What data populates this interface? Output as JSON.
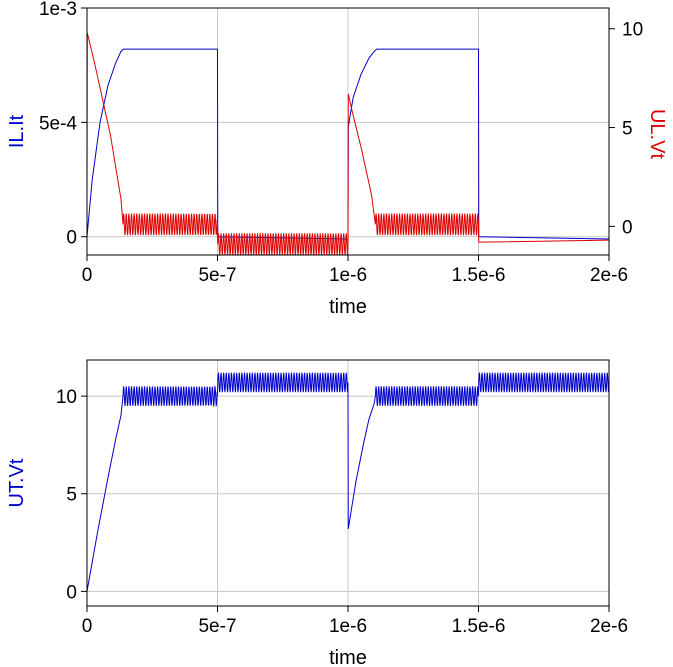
{
  "chart_data": [
    {
      "type": "line",
      "xlabel": "time",
      "x_ticks": [
        "0",
        "5e-7",
        "1e-6",
        "1.5e-6",
        "2e-6"
      ],
      "xlim": [
        0,
        2e-06
      ],
      "grid": true,
      "left_axis": {
        "label": "IL.It",
        "color": "#0000cc",
        "ylim": [
          -8e-05,
          0.001
        ],
        "ticks": [
          {
            "value": 0,
            "label": "0"
          },
          {
            "value": 0.0005,
            "label": "5e-4"
          },
          {
            "value": 0.001,
            "label": "1e-3"
          }
        ]
      },
      "right_axis": {
        "label": "UL.Vt",
        "color": "#dd0000",
        "ylim": [
          -1.45,
          11.05
        ],
        "ticks": [
          {
            "value": 0,
            "label": "0"
          },
          {
            "value": 5,
            "label": "5"
          },
          {
            "value": 10,
            "label": "10"
          }
        ]
      },
      "series": [
        {
          "name": "IL.It",
          "axis": "left",
          "color": "#0000cc",
          "points": [
            [
              0,
              0
            ],
            [
              2e-08,
              0.00025
            ],
            [
              5e-08,
              0.0005
            ],
            [
              8e-08,
              0.00066
            ],
            [
              1.1e-07,
              0.00076
            ],
            [
              1.3e-07,
              0.00081
            ],
            [
              1.4e-07,
              0.00082
            ],
            [
              5e-07,
              0.00082
            ],
            [
              5.01e-07,
              0
            ],
            [
              1e-06,
              -1e-05
            ],
            [
              1.001e-06,
              0.00048
            ],
            [
              1.02e-06,
              0.00061
            ],
            [
              1.05e-06,
              0.00071
            ],
            [
              1.08e-06,
              0.00078
            ],
            [
              1.1e-06,
              0.00081
            ],
            [
              1.11e-06,
              0.00082
            ],
            [
              1.5e-06,
              0.00082
            ],
            [
              1.501e-06,
              0
            ],
            [
              2e-06,
              -1e-05
            ]
          ]
        },
        {
          "name": "UL.Vt",
          "axis": "right",
          "color": "#dd0000",
          "oscillation": {
            "amplitude": 0.55,
            "period": 1e-08
          },
          "points": [
            [
              0,
              1.5
            ],
            [
              1e-09,
              9.8
            ],
            [
              3e-08,
              8.2
            ],
            [
              6e-08,
              6.4
            ],
            [
              9e-08,
              4.6
            ],
            [
              1.15e-07,
              2.6
            ],
            [
              1.3e-07,
              1.4
            ],
            [
              1.38e-07,
              0.1
            ],
            [
              5e-07,
              0.1
            ],
            [
              5.01e-07,
              -0.9
            ],
            [
              1e-06,
              -0.9
            ],
            [
              1.001e-06,
              6.7
            ],
            [
              1.02e-06,
              5.6
            ],
            [
              1.05e-06,
              4.0
            ],
            [
              1.07e-06,
              2.8
            ],
            [
              1.09e-06,
              1.6
            ],
            [
              1.1e-06,
              0.6
            ],
            [
              1.105e-06,
              0.1
            ],
            [
              1.5e-06,
              0.1
            ],
            [
              1.501e-06,
              -0.8
            ],
            [
              2e-06,
              -0.7
            ]
          ]
        }
      ]
    },
    {
      "type": "line",
      "xlabel": "time",
      "x_ticks": [
        "0",
        "5e-7",
        "1e-6",
        "1.5e-6",
        "2e-6"
      ],
      "xlim": [
        0,
        2e-06
      ],
      "grid": true,
      "left_axis": {
        "label": "UT.Vt",
        "color": "#0000cc",
        "ylim": [
          -0.75,
          11.85
        ],
        "ticks": [
          {
            "value": 0,
            "label": "0"
          },
          {
            "value": 5,
            "label": "5"
          },
          {
            "value": 10,
            "label": "10"
          }
        ]
      },
      "series": [
        {
          "name": "UT.Vt",
          "axis": "left",
          "color": "#0000cc",
          "oscillation": {
            "amplitude": 0.5,
            "period": 1e-08
          },
          "points": [
            [
              0,
              0
            ],
            [
              4e-08,
              3.0
            ],
            [
              8e-08,
              5.8
            ],
            [
              1.1e-07,
              7.8
            ],
            [
              1.3e-07,
              9.0
            ],
            [
              1.38e-07,
              10.0
            ],
            [
              5e-07,
              10.0
            ],
            [
              5.01e-07,
              10.7
            ],
            [
              1e-06,
              10.7
            ],
            [
              1.001e-06,
              3.2
            ],
            [
              1.03e-06,
              5.6
            ],
            [
              1.06e-06,
              7.6
            ],
            [
              1.08e-06,
              8.8
            ],
            [
              1.1e-06,
              9.6
            ],
            [
              1.105e-06,
              10.0
            ],
            [
              1.5e-06,
              10.0
            ],
            [
              1.501e-06,
              10.7
            ],
            [
              2e-06,
              10.7
            ]
          ]
        }
      ]
    }
  ]
}
